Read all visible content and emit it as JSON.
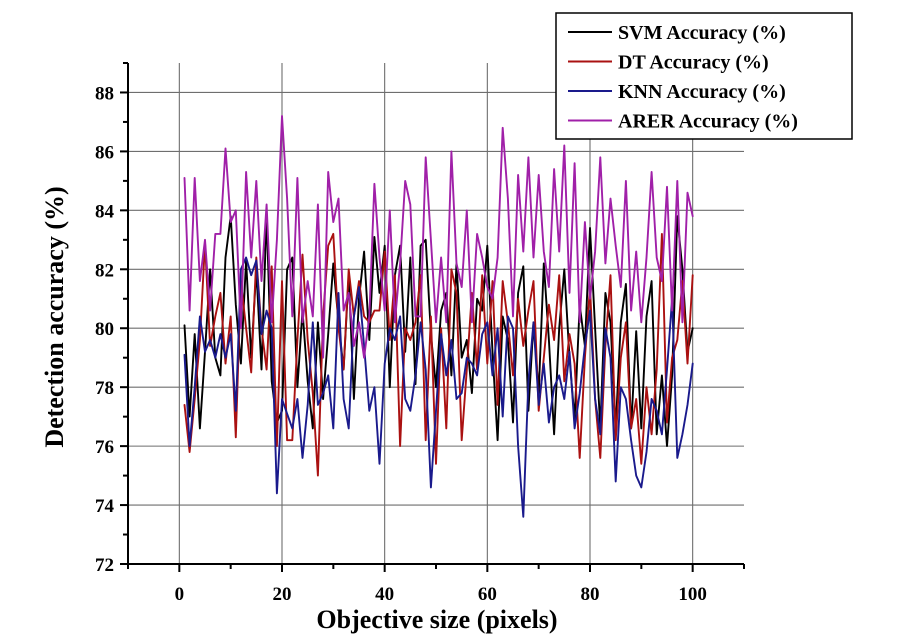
{
  "chart_data": {
    "type": "line",
    "xlabel": "Objective size (pixels)",
    "ylabel": "Detection accuracy (%)",
    "xlim": [
      -10,
      110
    ],
    "ylim": [
      72,
      89
    ],
    "xticks": [
      0,
      20,
      40,
      60,
      80,
      100
    ],
    "yticks": [
      72,
      74,
      76,
      78,
      80,
      82,
      84,
      86,
      88
    ],
    "grid": true,
    "legend_position": "top-right",
    "series": [
      {
        "name": "SVM Accuracy (%)",
        "color": "#000000",
        "x": [
          1,
          2,
          3,
          4,
          5,
          6,
          7,
          8,
          9,
          10,
          11,
          12,
          13,
          14,
          15,
          16,
          17,
          18,
          19,
          20,
          21,
          22,
          23,
          24,
          25,
          26,
          27,
          28,
          29,
          30,
          31,
          32,
          33,
          34,
          35,
          36,
          37,
          38,
          39,
          40,
          41,
          42,
          43,
          44,
          45,
          46,
          47,
          48,
          49,
          50,
          51,
          52,
          53,
          54,
          55,
          56,
          57,
          58,
          59,
          60,
          61,
          62,
          63,
          64,
          65,
          66,
          67,
          68,
          69,
          70,
          71,
          72,
          73,
          74,
          75,
          76,
          77,
          78,
          79,
          80,
          81,
          82,
          83,
          84,
          85,
          86,
          87,
          88,
          89,
          90,
          91,
          92,
          93,
          94,
          95,
          96,
          97,
          98,
          99,
          100
        ],
        "y": [
          80.1,
          77.0,
          79.8,
          76.6,
          79.2,
          82.0,
          79.0,
          78.4,
          82.4,
          83.8,
          80.8,
          78.8,
          82.3,
          79.0,
          82.0,
          78.6,
          83.9,
          78.2,
          76.8,
          77.2,
          82.0,
          82.4,
          78.0,
          80.6,
          78.2,
          76.6,
          80.2,
          77.6,
          79.8,
          82.2,
          80.2,
          78.6,
          81.8,
          77.6,
          81.0,
          82.6,
          79.6,
          83.1,
          81.2,
          82.8,
          78.0,
          81.8,
          82.8,
          79.2,
          82.4,
          78.1,
          82.8,
          83.0,
          79.8,
          78.0,
          80.6,
          81.2,
          78.4,
          82.2,
          79.0,
          79.6,
          77.8,
          81.0,
          80.6,
          82.8,
          79.2,
          76.2,
          80.4,
          79.6,
          76.8,
          81.2,
          82.1,
          77.2,
          80.2,
          77.8,
          82.2,
          79.6,
          76.4,
          80.0,
          82.0,
          79.0,
          76.9,
          80.8,
          79.4,
          83.4,
          80.0,
          76.6,
          81.2,
          80.2,
          76.6,
          80.2,
          81.5,
          76.6,
          79.9,
          76.6,
          80.4,
          81.6,
          76.4,
          78.4,
          76.0,
          78.4,
          83.8,
          82.0,
          79.2,
          80.0
        ]
      },
      {
        "name": "DT Accuracy (%)",
        "color": "#aa1111",
        "x": [
          1,
          2,
          3,
          4,
          5,
          6,
          7,
          8,
          9,
          10,
          11,
          12,
          13,
          14,
          15,
          16,
          17,
          18,
          19,
          20,
          21,
          22,
          23,
          24,
          25,
          26,
          27,
          28,
          29,
          30,
          31,
          32,
          33,
          34,
          35,
          36,
          37,
          38,
          39,
          40,
          41,
          42,
          43,
          44,
          45,
          46,
          47,
          48,
          49,
          50,
          51,
          52,
          53,
          54,
          55,
          56,
          57,
          58,
          59,
          60,
          61,
          62,
          63,
          64,
          65,
          66,
          67,
          68,
          69,
          70,
          71,
          72,
          73,
          74,
          75,
          76,
          77,
          78,
          79,
          80,
          81,
          82,
          83,
          84,
          85,
          86,
          87,
          88,
          89,
          90,
          91,
          92,
          93,
          94,
          95,
          96,
          97,
          98,
          99,
          100
        ],
        "y": [
          77.4,
          75.8,
          77.6,
          79.6,
          82.9,
          79.4,
          80.4,
          81.2,
          78.8,
          80.4,
          76.3,
          81.6,
          80.0,
          78.5,
          82.4,
          80.0,
          78.6,
          82.1,
          76.0,
          81.6,
          76.2,
          76.2,
          79.6,
          82.5,
          79.6,
          77.8,
          75.0,
          80.4,
          82.8,
          83.2,
          80.0,
          78.6,
          82.0,
          80.4,
          81.6,
          80.4,
          80.2,
          80.6,
          80.6,
          82.6,
          79.6,
          81.8,
          76.0,
          80.0,
          79.6,
          80.2,
          81.8,
          76.2,
          80.4,
          75.4,
          80.0,
          76.6,
          82.0,
          81.2,
          76.2,
          78.6,
          81.2,
          78.6,
          81.8,
          78.8,
          81.6,
          77.4,
          81.6,
          80.2,
          78.4,
          81.0,
          79.4,
          80.6,
          81.6,
          77.2,
          79.0,
          80.8,
          79.6,
          81.8,
          78.2,
          79.8,
          78.8,
          75.6,
          79.0,
          81.4,
          77.6,
          75.6,
          79.4,
          81.8,
          76.2,
          79.0,
          80.2,
          76.6,
          77.6,
          75.4,
          78.0,
          76.4,
          78.6,
          83.2,
          76.8,
          79.0,
          79.6,
          81.6,
          78.8,
          81.8
        ]
      },
      {
        "name": "KNN Accuracy (%)",
        "color": "#1a1a8c",
        "x": [
          1,
          2,
          3,
          4,
          5,
          6,
          7,
          8,
          9,
          10,
          11,
          12,
          13,
          14,
          15,
          16,
          17,
          18,
          19,
          20,
          21,
          22,
          23,
          24,
          25,
          26,
          27,
          28,
          29,
          30,
          31,
          32,
          33,
          34,
          35,
          36,
          37,
          38,
          39,
          40,
          41,
          42,
          43,
          44,
          45,
          46,
          47,
          48,
          49,
          50,
          51,
          52,
          53,
          54,
          55,
          56,
          57,
          58,
          59,
          60,
          61,
          62,
          63,
          64,
          65,
          66,
          67,
          68,
          69,
          70,
          71,
          72,
          73,
          74,
          75,
          76,
          77,
          78,
          79,
          80,
          81,
          82,
          83,
          84,
          85,
          86,
          87,
          88,
          89,
          90,
          91,
          92,
          93,
          94,
          95,
          96,
          97,
          98,
          99,
          100
        ],
        "y": [
          79.1,
          76.0,
          78.0,
          80.4,
          79.2,
          79.6,
          79.0,
          79.8,
          79.0,
          79.8,
          77.2,
          82.0,
          82.4,
          81.8,
          82.3,
          79.8,
          80.6,
          80.0,
          74.4,
          77.6,
          77.1,
          76.6,
          77.6,
          75.6,
          77.4,
          80.2,
          77.4,
          77.8,
          78.4,
          76.6,
          81.2,
          77.6,
          76.6,
          80.4,
          81.4,
          79.4,
          77.2,
          78.0,
          75.4,
          78.8,
          80.0,
          79.6,
          80.4,
          77.6,
          77.2,
          78.4,
          80.2,
          78.6,
          74.6,
          77.2,
          79.8,
          78.4,
          79.6,
          77.6,
          77.8,
          79.0,
          78.8,
          78.4,
          79.8,
          80.2,
          78.4,
          80.0,
          77.0,
          80.4,
          80.0,
          76.0,
          73.6,
          78.2,
          80.2,
          77.4,
          78.8,
          76.8,
          78.0,
          78.4,
          77.6,
          79.2,
          76.6,
          77.8,
          79.4,
          80.6,
          77.6,
          76.4,
          80.0,
          79.0,
          74.8,
          78.0,
          77.6,
          76.2,
          75.0,
          74.6,
          75.8,
          77.6,
          77.2,
          76.4,
          78.6,
          81.0,
          75.6,
          76.4,
          77.4,
          78.8
        ]
      },
      {
        "name": "ARER Accuracy (%)",
        "color": "#a020a8",
        "x": [
          1,
          2,
          3,
          4,
          5,
          6,
          7,
          8,
          9,
          10,
          11,
          12,
          13,
          14,
          15,
          16,
          17,
          18,
          19,
          20,
          21,
          22,
          23,
          24,
          25,
          26,
          27,
          28,
          29,
          30,
          31,
          32,
          33,
          34,
          35,
          36,
          37,
          38,
          39,
          40,
          41,
          42,
          43,
          44,
          45,
          46,
          47,
          48,
          49,
          50,
          51,
          52,
          53,
          54,
          55,
          56,
          57,
          58,
          59,
          60,
          61,
          62,
          63,
          64,
          65,
          66,
          67,
          68,
          69,
          70,
          71,
          72,
          73,
          74,
          75,
          76,
          77,
          78,
          79,
          80,
          81,
          82,
          83,
          84,
          85,
          86,
          87,
          88,
          89,
          90,
          91,
          92,
          93,
          94,
          95,
          96,
          97,
          98,
          99,
          100
        ],
        "y": [
          85.1,
          80.6,
          85.1,
          81.6,
          83.0,
          80.6,
          83.2,
          83.2,
          86.1,
          83.6,
          84.0,
          80.0,
          85.3,
          82.4,
          85.0,
          81.6,
          84.2,
          80.2,
          83.0,
          87.2,
          84.4,
          80.4,
          85.1,
          80.2,
          81.6,
          80.4,
          84.2,
          79.0,
          85.3,
          83.6,
          84.4,
          80.6,
          81.2,
          79.4,
          80.2,
          79.0,
          80.4,
          84.9,
          82.4,
          80.6,
          84.0,
          80.2,
          82.2,
          85.0,
          84.2,
          80.4,
          80.4,
          85.8,
          83.0,
          80.2,
          82.4,
          80.2,
          86.0,
          82.2,
          81.4,
          84.0,
          80.2,
          83.2,
          82.4,
          81.4,
          81.0,
          82.4,
          86.8,
          84.4,
          80.4,
          85.2,
          82.6,
          85.8,
          82.4,
          85.2,
          82.6,
          81.4,
          85.4,
          82.6,
          86.2,
          81.2,
          85.6,
          80.2,
          83.6,
          81.0,
          82.6,
          85.8,
          82.2,
          84.4,
          82.8,
          81.4,
          85.0,
          80.6,
          82.6,
          80.2,
          82.4,
          85.3,
          82.4,
          81.6,
          84.8,
          80.6,
          85.0,
          80.2,
          84.6,
          83.8
        ]
      }
    ]
  }
}
